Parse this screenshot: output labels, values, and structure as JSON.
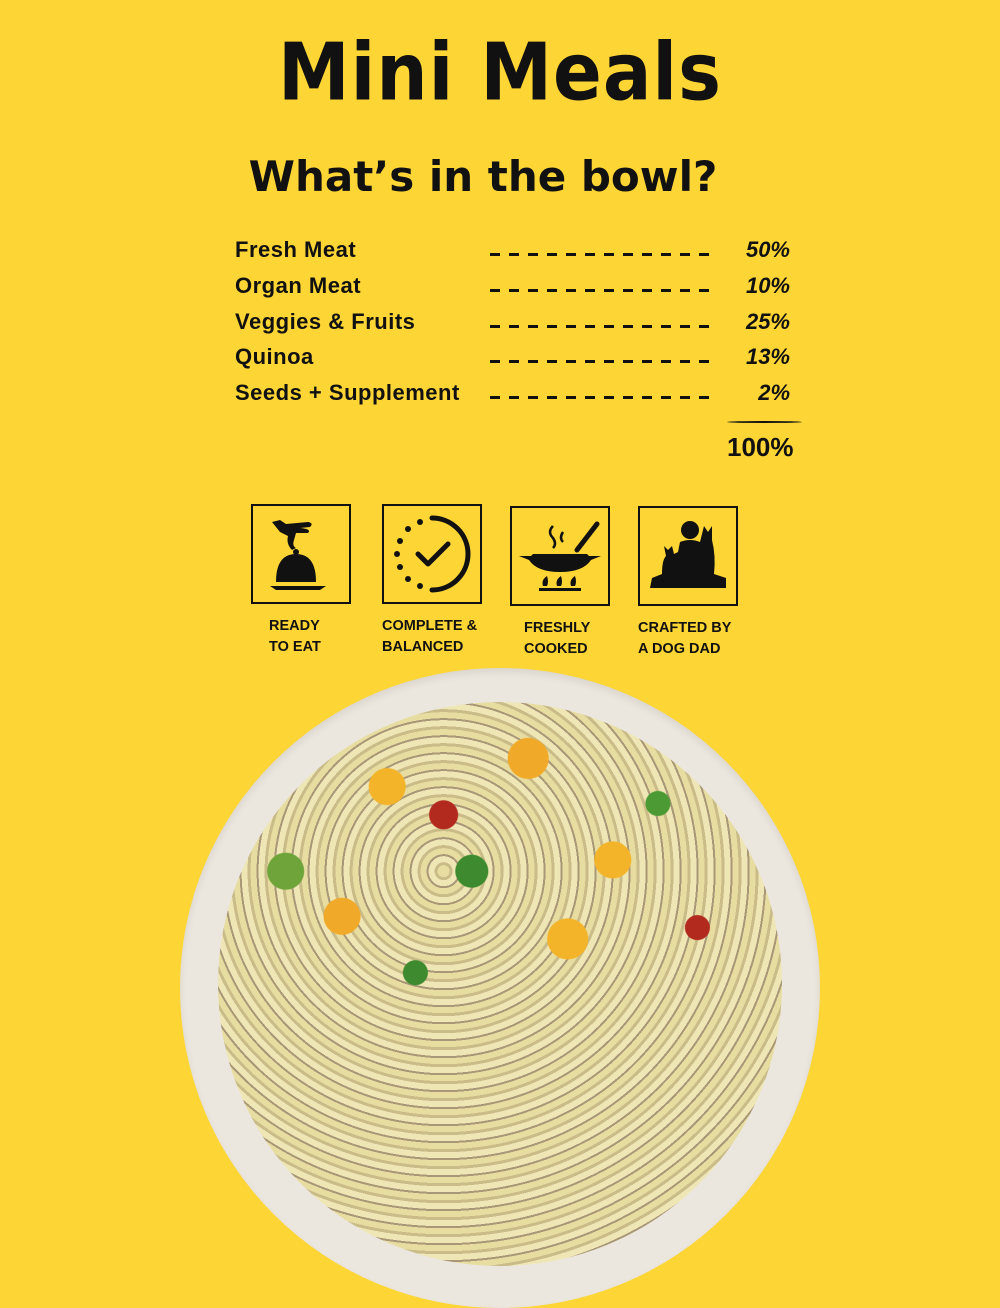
{
  "title": "Mini Meals",
  "subtitle": "What’s in the bowl?",
  "ingredients": [
    {
      "label": "Fresh Meat",
      "percent": "50%"
    },
    {
      "label": "Organ Meat",
      "percent": "10%"
    },
    {
      "label": "Veggies & Fruits",
      "percent": "25%"
    },
    {
      "label": "Quinoa",
      "percent": "13%"
    },
    {
      "label": "Seeds + Supplement",
      "percent": "2%"
    }
  ],
  "total": "100%",
  "badges": [
    {
      "icon": "cloche-serving-icon",
      "line1": "READY",
      "line2": "TO EAT"
    },
    {
      "icon": "checkmark-circle-icon",
      "line1": "COMPLETE &",
      "line2": "BALANCED"
    },
    {
      "icon": "cooking-pan-icon",
      "line1": "FRESHLY",
      "line2": "COOKED"
    },
    {
      "icon": "man-with-dogs-icon",
      "line1": "CRAFTED BY",
      "line2": "A DOG DAD"
    }
  ],
  "colors": {
    "background": "#FDD535",
    "text": "#111111"
  }
}
